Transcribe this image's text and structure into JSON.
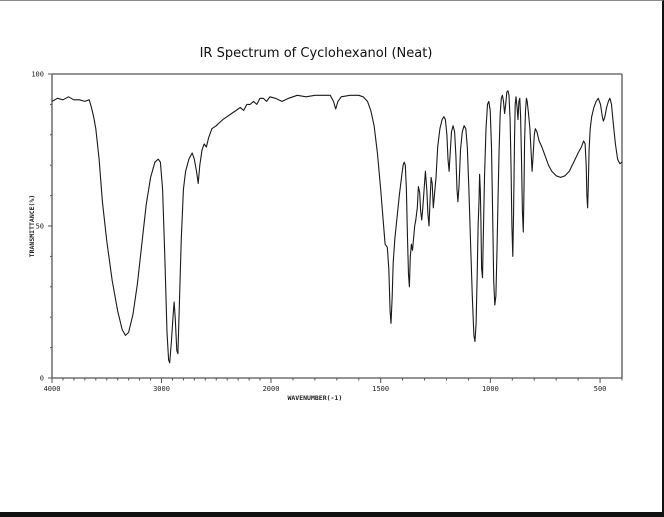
{
  "chart_data": {
    "type": "line",
    "title": "IR Spectrum of Cyclohexanol (Neat)",
    "xlabel": "WAVENUMBER(-1)",
    "ylabel": "TRANSMITTANCE(%)",
    "xlim": [
      4000,
      400
    ],
    "ylim": [
      0,
      100
    ],
    "x_ticks": [
      4000,
      3000,
      2000,
      1500,
      1000,
      500
    ],
    "y_ticks": [
      0,
      50,
      100
    ],
    "x_scale_note": "scale changes at 2000 cm-1 (2x expansion below 2000)",
    "grid": false,
    "legend": null,
    "series": [
      {
        "name": "Cyclohexanol (neat)",
        "points": [
          [
            4000,
            91
          ],
          [
            3950,
            92
          ],
          [
            3900,
            91.5
          ],
          [
            3850,
            92.5
          ],
          [
            3800,
            91.5
          ],
          [
            3750,
            91.5
          ],
          [
            3700,
            91
          ],
          [
            3660,
            91.5
          ],
          [
            3640,
            89
          ],
          [
            3620,
            86
          ],
          [
            3600,
            82
          ],
          [
            3570,
            72
          ],
          [
            3540,
            58
          ],
          [
            3500,
            45
          ],
          [
            3450,
            32
          ],
          [
            3400,
            22
          ],
          [
            3360,
            16
          ],
          [
            3330,
            14
          ],
          [
            3300,
            15
          ],
          [
            3260,
            21
          ],
          [
            3220,
            31
          ],
          [
            3180,
            44
          ],
          [
            3140,
            57
          ],
          [
            3100,
            66
          ],
          [
            3060,
            71
          ],
          [
            3030,
            72
          ],
          [
            3010,
            71
          ],
          [
            2990,
            62
          ],
          [
            2970,
            40
          ],
          [
            2950,
            15
          ],
          [
            2935,
            6
          ],
          [
            2925,
            5
          ],
          [
            2910,
            12
          ],
          [
            2895,
            20
          ],
          [
            2885,
            25
          ],
          [
            2875,
            20
          ],
          [
            2860,
            9
          ],
          [
            2850,
            8
          ],
          [
            2840,
            20
          ],
          [
            2820,
            45
          ],
          [
            2800,
            62
          ],
          [
            2780,
            68
          ],
          [
            2750,
            72
          ],
          [
            2720,
            74
          ],
          [
            2700,
            72
          ],
          [
            2680,
            68
          ],
          [
            2665,
            64
          ],
          [
            2650,
            70
          ],
          [
            2630,
            75
          ],
          [
            2610,
            77
          ],
          [
            2590,
            76
          ],
          [
            2570,
            79
          ],
          [
            2540,
            82
          ],
          [
            2500,
            83
          ],
          [
            2470,
            84
          ],
          [
            2440,
            85
          ],
          [
            2400,
            86
          ],
          [
            2360,
            87
          ],
          [
            2320,
            88
          ],
          [
            2280,
            89
          ],
          [
            2250,
            88
          ],
          [
            2220,
            90
          ],
          [
            2190,
            90
          ],
          [
            2160,
            91
          ],
          [
            2130,
            90
          ],
          [
            2100,
            92
          ],
          [
            2070,
            92
          ],
          [
            2040,
            91
          ],
          [
            2010,
            92.5
          ],
          [
            1980,
            92
          ],
          [
            1950,
            91
          ],
          [
            1920,
            92
          ],
          [
            1880,
            93
          ],
          [
            1840,
            92.5
          ],
          [
            1800,
            93
          ],
          [
            1760,
            93
          ],
          [
            1730,
            93
          ],
          [
            1715,
            91
          ],
          [
            1705,
            88.5
          ],
          [
            1695,
            91
          ],
          [
            1680,
            92.5
          ],
          [
            1640,
            93
          ],
          [
            1600,
            93
          ],
          [
            1580,
            92.5
          ],
          [
            1560,
            91
          ],
          [
            1545,
            88
          ],
          [
            1530,
            83
          ],
          [
            1515,
            74
          ],
          [
            1500,
            62
          ],
          [
            1490,
            53
          ],
          [
            1480,
            44
          ],
          [
            1470,
            43
          ],
          [
            1463,
            36
          ],
          [
            1457,
            22
          ],
          [
            1453,
            18
          ],
          [
            1448,
            26
          ],
          [
            1443,
            38
          ],
          [
            1435,
            46
          ],
          [
            1425,
            53
          ],
          [
            1415,
            60
          ],
          [
            1405,
            66
          ],
          [
            1398,
            70
          ],
          [
            1393,
            71
          ],
          [
            1388,
            70
          ],
          [
            1383,
            62
          ],
          [
            1378,
            46
          ],
          [
            1373,
            34
          ],
          [
            1369,
            30
          ],
          [
            1365,
            40
          ],
          [
            1360,
            44
          ],
          [
            1355,
            42
          ],
          [
            1350,
            46
          ],
          [
            1345,
            50
          ],
          [
            1340,
            52
          ],
          [
            1333,
            56
          ],
          [
            1328,
            63
          ],
          [
            1322,
            61
          ],
          [
            1318,
            55
          ],
          [
            1313,
            52
          ],
          [
            1308,
            56
          ],
          [
            1302,
            62
          ],
          [
            1296,
            68
          ],
          [
            1290,
            62
          ],
          [
            1285,
            54
          ],
          [
            1280,
            50
          ],
          [
            1275,
            58
          ],
          [
            1270,
            66
          ],
          [
            1265,
            64
          ],
          [
            1260,
            56
          ],
          [
            1255,
            60
          ],
          [
            1248,
            66
          ],
          [
            1240,
            76
          ],
          [
            1230,
            82
          ],
          [
            1220,
            85
          ],
          [
            1212,
            86
          ],
          [
            1205,
            85
          ],
          [
            1198,
            80
          ],
          [
            1193,
            72
          ],
          [
            1188,
            68
          ],
          [
            1183,
            74
          ],
          [
            1177,
            81
          ],
          [
            1170,
            83
          ],
          [
            1163,
            81
          ],
          [
            1157,
            73
          ],
          [
            1152,
            62
          ],
          [
            1148,
            58
          ],
          [
            1143,
            63
          ],
          [
            1136,
            75
          ],
          [
            1128,
            81
          ],
          [
            1120,
            83
          ],
          [
            1112,
            82
          ],
          [
            1105,
            76
          ],
          [
            1098,
            62
          ],
          [
            1090,
            44
          ],
          [
            1082,
            26
          ],
          [
            1075,
            14
          ],
          [
            1070,
            12
          ],
          [
            1065,
            18
          ],
          [
            1060,
            34
          ],
          [
            1056,
            50
          ],
          [
            1052,
            58
          ],
          [
            1049,
            67
          ],
          [
            1046,
            62
          ],
          [
            1043,
            52
          ],
          [
            1040,
            36
          ],
          [
            1036,
            33
          ],
          [
            1032,
            48
          ],
          [
            1027,
            66
          ],
          [
            1020,
            82
          ],
          [
            1013,
            90
          ],
          [
            1007,
            91
          ],
          [
            1001,
            88
          ],
          [
            995,
            76
          ],
          [
            990,
            55
          ],
          [
            985,
            32
          ],
          [
            980,
            24
          ],
          [
            975,
            27
          ],
          [
            970,
            42
          ],
          [
            965,
            60
          ],
          [
            960,
            75
          ],
          [
            955,
            87
          ],
          [
            950,
            92
          ],
          [
            945,
            93
          ],
          [
            940,
            91
          ],
          [
            935,
            87
          ],
          [
            930,
            90
          ],
          [
            925,
            94
          ],
          [
            920,
            94.5
          ],
          [
            915,
            93
          ],
          [
            910,
            85
          ],
          [
            906,
            70
          ],
          [
            902,
            50
          ],
          [
            898,
            40
          ],
          [
            894,
            55
          ],
          [
            890,
            78
          ],
          [
            887,
            90
          ],
          [
            883,
            92.5
          ],
          [
            878,
            89
          ],
          [
            874,
            85
          ],
          [
            870,
            91
          ],
          [
            866,
            92
          ],
          [
            862,
            86
          ],
          [
            858,
            72
          ],
          [
            854,
            55
          ],
          [
            850,
            48
          ],
          [
            847,
            60
          ],
          [
            844,
            78
          ],
          [
            840,
            88
          ],
          [
            836,
            92
          ],
          [
            832,
            91
          ],
          [
            826,
            87
          ],
          [
            820,
            82
          ],
          [
            815,
            75
          ],
          [
            810,
            68
          ],
          [
            806,
            72
          ],
          [
            800,
            80
          ],
          [
            795,
            82
          ],
          [
            788,
            81
          ],
          [
            778,
            78
          ],
          [
            765,
            76
          ],
          [
            750,
            73
          ],
          [
            735,
            70
          ],
          [
            720,
            68
          ],
          [
            700,
            66.5
          ],
          [
            680,
            66
          ],
          [
            660,
            66.5
          ],
          [
            640,
            68
          ],
          [
            620,
            71
          ],
          [
            600,
            74
          ],
          [
            585,
            76
          ],
          [
            575,
            78
          ],
          [
            568,
            77
          ],
          [
            563,
            70
          ],
          [
            560,
            60
          ],
          [
            557,
            56
          ],
          [
            554,
            62
          ],
          [
            550,
            75
          ],
          [
            545,
            82
          ],
          [
            538,
            86
          ],
          [
            528,
            89
          ],
          [
            518,
            91
          ],
          [
            508,
            92
          ],
          [
            498,
            90
          ],
          [
            490,
            86
          ],
          [
            485,
            84.5
          ],
          [
            478,
            86
          ],
          [
            470,
            89
          ],
          [
            462,
            91
          ],
          [
            455,
            92
          ],
          [
            448,
            90
          ],
          [
            440,
            84
          ],
          [
            430,
            77
          ],
          [
            420,
            72
          ],
          [
            410,
            70.5
          ],
          [
            400,
            71
          ]
        ]
      }
    ]
  },
  "axes": {
    "y_tick_labels": [
      "100",
      "50",
      "0"
    ],
    "x_tick_labels": [
      "4000",
      "3000",
      "2000",
      "1500",
      "1000",
      "500"
    ]
  },
  "colors": {
    "line": "#1a1a1a",
    "axis": "#555555",
    "background": "#ffffff"
  }
}
